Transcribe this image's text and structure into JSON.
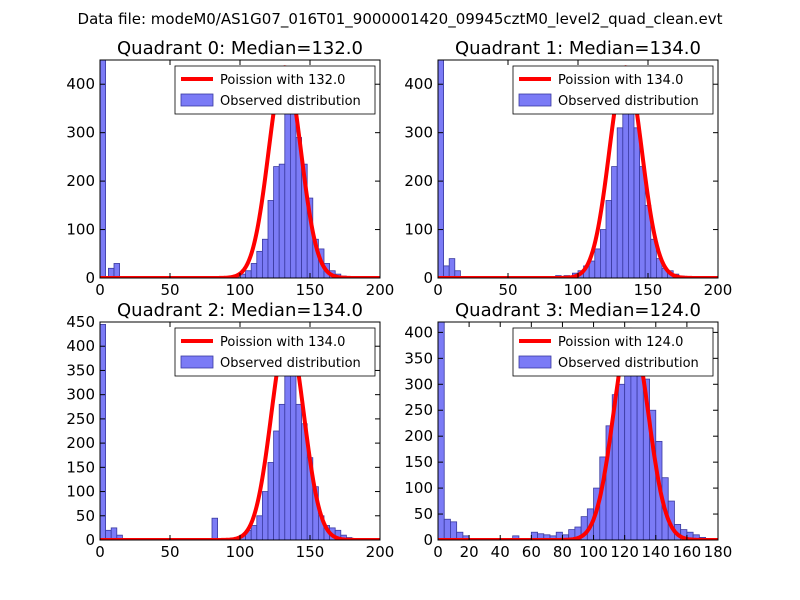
{
  "suptitle": "Data file: modeM0/AS1G07_016T01_9000001420_09945cztM0_level2_quad_clean.evt",
  "colors": {
    "bar": "#7b7bf6",
    "bar_edge": "#3a3aa0",
    "curve": "#ff0000"
  },
  "chart_data": [
    {
      "type": "bar",
      "title": "Quadrant 0: Median=132.0",
      "xlim": [
        0,
        200
      ],
      "ylim": [
        0,
        450
      ],
      "xticks": [
        "0",
        "50",
        "100",
        "150",
        "200"
      ],
      "yticks": [
        {
          "v": 0,
          "t": "0"
        },
        {
          "v": 100,
          "t": "100"
        },
        {
          "v": 200,
          "t": "200"
        },
        {
          "v": 300,
          "t": "300"
        },
        {
          "v": 400,
          "t": "400"
        }
      ],
      "legend": [
        "Poission with 132.0",
        "Observed distribution"
      ],
      "poisson_mean": 132.0,
      "poisson_peak": 435,
      "bins": [
        {
          "x": 0,
          "v": 450
        },
        {
          "x": 4,
          "v": 0
        },
        {
          "x": 6,
          "v": 20
        },
        {
          "x": 10,
          "v": 30
        },
        {
          "x": 75,
          "v": 3
        },
        {
          "x": 80,
          "v": 3
        },
        {
          "x": 88,
          "v": 3
        },
        {
          "x": 95,
          "v": 5
        },
        {
          "x": 100,
          "v": 8
        },
        {
          "x": 104,
          "v": 15
        },
        {
          "x": 108,
          "v": 30
        },
        {
          "x": 112,
          "v": 55
        },
        {
          "x": 116,
          "v": 80
        },
        {
          "x": 120,
          "v": 160
        },
        {
          "x": 124,
          "v": 230
        },
        {
          "x": 128,
          "v": 235
        },
        {
          "x": 132,
          "v": 340
        },
        {
          "x": 136,
          "v": 340
        },
        {
          "x": 140,
          "v": 290
        },
        {
          "x": 144,
          "v": 235
        },
        {
          "x": 148,
          "v": 165
        },
        {
          "x": 152,
          "v": 80
        },
        {
          "x": 156,
          "v": 60
        },
        {
          "x": 160,
          "v": 30
        },
        {
          "x": 164,
          "v": 15
        },
        {
          "x": 168,
          "v": 8
        },
        {
          "x": 172,
          "v": 4
        },
        {
          "x": 176,
          "v": 2
        }
      ]
    },
    {
      "type": "bar",
      "title": "Quadrant 1: Median=134.0",
      "xlim": [
        0,
        200
      ],
      "ylim": [
        0,
        450
      ],
      "xticks": [
        "0",
        "50",
        "100",
        "150",
        "200"
      ],
      "yticks": [
        {
          "v": 0,
          "t": "0"
        },
        {
          "v": 100,
          "t": "100"
        },
        {
          "v": 200,
          "t": "200"
        },
        {
          "v": 300,
          "t": "300"
        },
        {
          "v": 400,
          "t": "400"
        }
      ],
      "legend": [
        "Poission with 134.0",
        "Observed distribution"
      ],
      "poisson_mean": 134.0,
      "poisson_peak": 435,
      "bins": [
        {
          "x": 0,
          "v": 450
        },
        {
          "x": 4,
          "v": 25
        },
        {
          "x": 8,
          "v": 40
        },
        {
          "x": 12,
          "v": 15
        },
        {
          "x": 72,
          "v": 3
        },
        {
          "x": 78,
          "v": 3
        },
        {
          "x": 84,
          "v": 5
        },
        {
          "x": 90,
          "v": 5
        },
        {
          "x": 96,
          "v": 10
        },
        {
          "x": 100,
          "v": 15
        },
        {
          "x": 104,
          "v": 25
        },
        {
          "x": 108,
          "v": 35
        },
        {
          "x": 112,
          "v": 60
        },
        {
          "x": 116,
          "v": 100
        },
        {
          "x": 120,
          "v": 160
        },
        {
          "x": 124,
          "v": 230
        },
        {
          "x": 128,
          "v": 310
        },
        {
          "x": 132,
          "v": 420
        },
        {
          "x": 136,
          "v": 400
        },
        {
          "x": 140,
          "v": 310
        },
        {
          "x": 144,
          "v": 230
        },
        {
          "x": 148,
          "v": 150
        },
        {
          "x": 152,
          "v": 80
        },
        {
          "x": 156,
          "v": 40
        },
        {
          "x": 160,
          "v": 20
        },
        {
          "x": 164,
          "v": 15
        },
        {
          "x": 168,
          "v": 8
        },
        {
          "x": 172,
          "v": 4
        },
        {
          "x": 176,
          "v": 3
        }
      ]
    },
    {
      "type": "bar",
      "title": "Quadrant 2: Median=134.0",
      "xlim": [
        0,
        200
      ],
      "ylim": [
        0,
        450
      ],
      "xticks": [
        "0",
        "50",
        "100",
        "150",
        "200"
      ],
      "yticks": [
        {
          "v": 0,
          "t": "0"
        },
        {
          "v": 50,
          "t": "50"
        },
        {
          "v": 100,
          "t": "100"
        },
        {
          "v": 150,
          "t": "150"
        },
        {
          "v": 200,
          "t": "200"
        },
        {
          "v": 250,
          "t": "250"
        },
        {
          "v": 300,
          "t": "300"
        },
        {
          "v": 350,
          "t": "350"
        },
        {
          "v": 400,
          "t": "400"
        },
        {
          "v": 450,
          "t": "450"
        }
      ],
      "legend": [
        "Poission with 134.0",
        "Observed distribution"
      ],
      "poisson_mean": 134.0,
      "poisson_peak": 430,
      "bins": [
        {
          "x": 0,
          "v": 445
        },
        {
          "x": 4,
          "v": 20
        },
        {
          "x": 8,
          "v": 25
        },
        {
          "x": 12,
          "v": 10
        },
        {
          "x": 80,
          "v": 45
        },
        {
          "x": 88,
          "v": 3
        },
        {
          "x": 96,
          "v": 5
        },
        {
          "x": 100,
          "v": 10
        },
        {
          "x": 104,
          "v": 20
        },
        {
          "x": 108,
          "v": 30
        },
        {
          "x": 112,
          "v": 50
        },
        {
          "x": 116,
          "v": 100
        },
        {
          "x": 120,
          "v": 160
        },
        {
          "x": 124,
          "v": 225
        },
        {
          "x": 128,
          "v": 280
        },
        {
          "x": 132,
          "v": 340
        },
        {
          "x": 136,
          "v": 340
        },
        {
          "x": 140,
          "v": 280
        },
        {
          "x": 144,
          "v": 240
        },
        {
          "x": 148,
          "v": 170
        },
        {
          "x": 152,
          "v": 110
        },
        {
          "x": 156,
          "v": 50
        },
        {
          "x": 160,
          "v": 30
        },
        {
          "x": 164,
          "v": 25
        },
        {
          "x": 168,
          "v": 20
        },
        {
          "x": 172,
          "v": 10
        },
        {
          "x": 176,
          "v": 5
        },
        {
          "x": 180,
          "v": 3
        }
      ]
    },
    {
      "type": "bar",
      "title": "Quadrant 3: Median=124.0",
      "xlim": [
        0,
        180
      ],
      "ylim": [
        0,
        420
      ],
      "xticks": [
        "0",
        "20",
        "40",
        "60",
        "80",
        "100",
        "120",
        "140",
        "160",
        "180"
      ],
      "yticks": [
        {
          "v": 0,
          "t": "0"
        },
        {
          "v": 50,
          "t": "50"
        },
        {
          "v": 100,
          "t": "100"
        },
        {
          "v": 150,
          "t": "150"
        },
        {
          "v": 200,
          "t": "200"
        },
        {
          "v": 250,
          "t": "250"
        },
        {
          "v": 300,
          "t": "300"
        },
        {
          "v": 350,
          "t": "350"
        },
        {
          "v": 400,
          "t": "400"
        }
      ],
      "legend": [
        "Poission with 124.0",
        "Observed distribution"
      ],
      "poisson_mean": 124.0,
      "poisson_peak": 405,
      "bins": [
        {
          "x": 0,
          "v": 420
        },
        {
          "x": 4,
          "v": 40
        },
        {
          "x": 8,
          "v": 35
        },
        {
          "x": 12,
          "v": 15
        },
        {
          "x": 16,
          "v": 8
        },
        {
          "x": 44,
          "v": 3
        },
        {
          "x": 48,
          "v": 8
        },
        {
          "x": 56,
          "v": 3
        },
        {
          "x": 60,
          "v": 15
        },
        {
          "x": 64,
          "v": 12
        },
        {
          "x": 68,
          "v": 10
        },
        {
          "x": 72,
          "v": 8
        },
        {
          "x": 76,
          "v": 15
        },
        {
          "x": 80,
          "v": 10
        },
        {
          "x": 84,
          "v": 20
        },
        {
          "x": 88,
          "v": 25
        },
        {
          "x": 92,
          "v": 45
        },
        {
          "x": 96,
          "v": 60
        },
        {
          "x": 100,
          "v": 100
        },
        {
          "x": 104,
          "v": 160
        },
        {
          "x": 108,
          "v": 220
        },
        {
          "x": 112,
          "v": 280
        },
        {
          "x": 116,
          "v": 300
        },
        {
          "x": 120,
          "v": 330
        },
        {
          "x": 124,
          "v": 360
        },
        {
          "x": 128,
          "v": 370
        },
        {
          "x": 132,
          "v": 310
        },
        {
          "x": 136,
          "v": 250
        },
        {
          "x": 140,
          "v": 190
        },
        {
          "x": 144,
          "v": 120
        },
        {
          "x": 148,
          "v": 75
        },
        {
          "x": 152,
          "v": 30
        },
        {
          "x": 156,
          "v": 20
        },
        {
          "x": 160,
          "v": 15
        },
        {
          "x": 164,
          "v": 10
        },
        {
          "x": 168,
          "v": 5
        },
        {
          "x": 172,
          "v": 3
        }
      ]
    }
  ]
}
